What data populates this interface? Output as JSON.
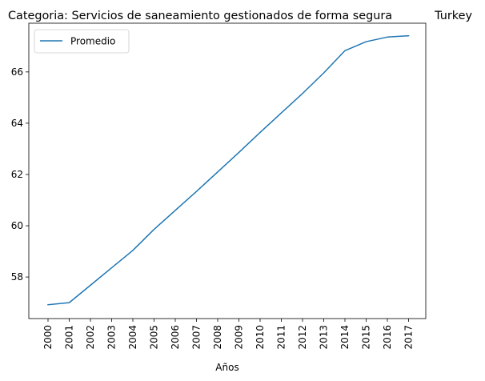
{
  "chart_data": {
    "type": "line",
    "title_left": "Categoria: Servicios de saneamiento gestionados de forma segura",
    "title_right": "Turkey",
    "xlabel": "Años",
    "ylabel": "",
    "categories": [
      "2000",
      "2001",
      "2002",
      "2003",
      "2004",
      "2005",
      "2006",
      "2007",
      "2008",
      "2009",
      "2010",
      "2011",
      "2012",
      "2013",
      "2014",
      "2015",
      "2016",
      "2017"
    ],
    "y_ticks": [
      58,
      60,
      62,
      64,
      66
    ],
    "ylim": [
      56.38,
      67.9
    ],
    "grid": false,
    "legend_position": "upper-left",
    "series": [
      {
        "name": "Promedio",
        "color": "#1f77b4",
        "values": [
          56.92,
          57.0,
          57.68,
          58.36,
          59.04,
          59.86,
          60.6,
          61.34,
          62.1,
          62.86,
          63.64,
          64.4,
          65.16,
          65.96,
          66.83,
          67.18,
          67.36,
          67.41
        ]
      }
    ]
  }
}
